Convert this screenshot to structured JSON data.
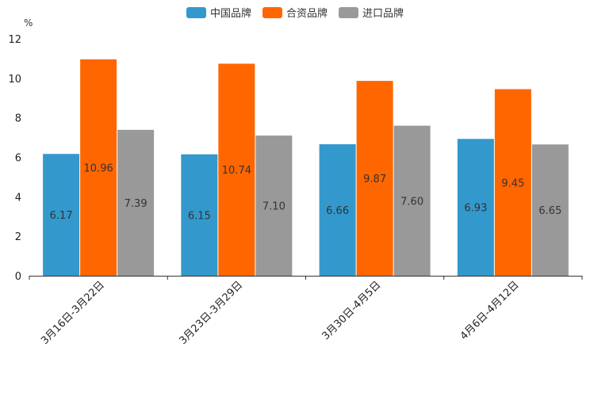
{
  "chart_data": {
    "type": "bar",
    "unit_label": "%",
    "categories": [
      "3月16日-3月22日",
      "3月23日-3月29日",
      "3月30日-4月5日",
      "4月6日-4月12日"
    ],
    "series": [
      {
        "name": "中国品牌",
        "color": "#3399cc",
        "values": [
          6.17,
          6.15,
          6.66,
          6.93
        ]
      },
      {
        "name": "合资品牌",
        "color": "#ff6600",
        "values": [
          10.96,
          10.74,
          9.87,
          9.45
        ]
      },
      {
        "name": "进口品牌",
        "color": "#999999",
        "values": [
          7.39,
          7.1,
          7.6,
          6.65
        ]
      }
    ],
    "ylim": [
      0,
      12
    ],
    "yticks": [
      0,
      2,
      4,
      6,
      8,
      10,
      12
    ],
    "legend_position": "top-center",
    "grid": false
  }
}
